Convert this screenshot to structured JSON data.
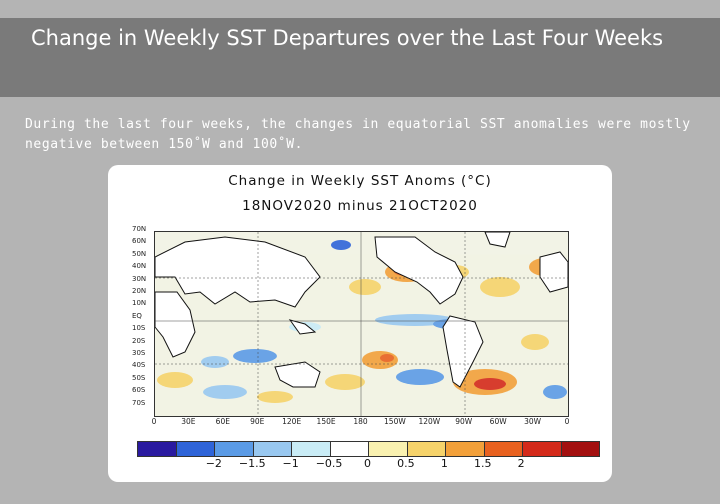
{
  "slide": {
    "title": "Change in Weekly SST Departures over the Last Four Weeks",
    "description": "During the last four weeks, the changes in equatorial SST anomalies were mostly negative between 150˚W and 100˚W."
  },
  "figure": {
    "title_line1": "Change in Weekly SST Anoms (°C)",
    "title_line2": "18NOV2020 minus 21OCT2020",
    "lat_labels": [
      "70N",
      "60N",
      "50N",
      "40N",
      "30N",
      "20N",
      "10N",
      "EQ",
      "10S",
      "20S",
      "30S",
      "40S",
      "50S",
      "60S",
      "70S"
    ],
    "lon_labels": [
      "0",
      "30E",
      "60E",
      "90E",
      "120E",
      "150E",
      "180",
      "150W",
      "120W",
      "90W",
      "60W",
      "30W",
      "0"
    ],
    "colorbar": {
      "colors": [
        "#2a1aa0",
        "#2f64d8",
        "#5b9be6",
        "#99c8f0",
        "#c9ecf6",
        "#ffffff",
        "#f9f1b0",
        "#f6d36b",
        "#f2a03a",
        "#e8611f",
        "#d42a1a",
        "#a31010"
      ],
      "labels": [
        "−2",
        "−1.5",
        "−1",
        "−0.5",
        "0",
        "0.5",
        "1",
        "1.5",
        "2"
      ]
    }
  }
}
